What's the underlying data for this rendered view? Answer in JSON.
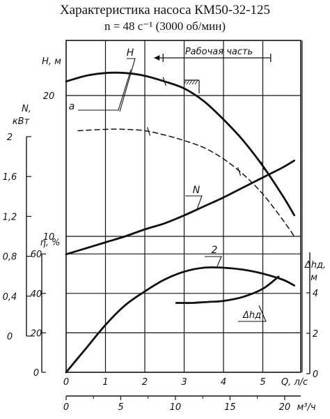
{
  "header": {
    "title": "Характеристика насоса КМ50-32-125",
    "subtitle": "n = 48 с⁻¹  (3000 об/мин)"
  },
  "chart_data": {
    "type": "line",
    "title": "Характеристика насоса КМ50-32-125",
    "subtitle": "n = 48 с⁻¹  (3000 об/мин)",
    "x_axes": {
      "ls": {
        "label": "Q, л/с",
        "ticks": [
          "0",
          "1",
          "2",
          "3",
          "4",
          "5"
        ],
        "range": [
          0,
          6
        ]
      },
      "m3h": {
        "label": "Q, м³/ч",
        "ticks": [
          "0",
          "5",
          "10",
          "15",
          "20"
        ],
        "range": [
          0,
          21.6
        ]
      }
    },
    "y_axes": {
      "H": {
        "label": "H, м",
        "ticks": [
          "10",
          "20"
        ],
        "range": [
          0,
          22
        ]
      },
      "N": {
        "label": "N, кВт",
        "ticks": [
          "0",
          "0,4",
          "0,8",
          "1,2",
          "1,6",
          "2"
        ],
        "range": [
          0,
          2
        ]
      },
      "eta": {
        "label": "η, %",
        "ticks": [
          "0",
          "20",
          "40",
          "60"
        ],
        "range": [
          0,
          60
        ]
      },
      "dh": {
        "label": "Δhд, м",
        "ticks": [
          "0",
          "2",
          "4"
        ],
        "range": [
          0,
          6
        ]
      }
    },
    "operating_range": {
      "label": "Рабочая часть",
      "Q_from": 2.5,
      "Q_to": 5.2
    },
    "series": [
      {
        "name": "H",
        "axis": "H",
        "style": "solid",
        "x": [
          0,
          0.5,
          1,
          1.5,
          2,
          2.5,
          3,
          3.5,
          4,
          4.5,
          5,
          5.5,
          5.8
        ],
        "y": [
          21.0,
          21.4,
          21.6,
          21.6,
          21.4,
          21.0,
          20.5,
          19.6,
          18.3,
          16.8,
          15.0,
          12.9,
          11.5
        ]
      },
      {
        "name": "a",
        "axis": "H",
        "style": "dashed",
        "x": [
          0.3,
          1,
          1.5,
          2,
          2.5,
          3,
          3.5,
          4,
          4.5,
          5,
          5.5,
          5.8
        ],
        "y": [
          17.5,
          17.6,
          17.6,
          17.5,
          17.2,
          16.8,
          16.3,
          15.5,
          14.4,
          13.0,
          11.2,
          10.0
        ]
      },
      {
        "name": "N",
        "axis": "N",
        "style": "solid",
        "x": [
          0,
          0.5,
          1,
          1.5,
          2,
          2.5,
          3,
          3.5,
          4,
          4.5,
          5,
          5.5,
          5.8
        ],
        "y": [
          0.82,
          0.88,
          0.94,
          1.0,
          1.07,
          1.13,
          1.21,
          1.3,
          1.39,
          1.49,
          1.59,
          1.69,
          1.76
        ]
      },
      {
        "name": "η",
        "axis": "eta",
        "style": "solid",
        "x": [
          0,
          0.5,
          1,
          1.5,
          2,
          2.5,
          3,
          3.5,
          4,
          4.5,
          5,
          5.5,
          5.8
        ],
        "y": [
          0,
          12,
          24,
          34,
          41,
          47,
          51,
          53,
          53,
          52,
          50,
          47,
          44
        ]
      },
      {
        "name": "Δhд",
        "axis": "dh",
        "style": "solid",
        "x": [
          2.8,
          3.2,
          3.6,
          4.0,
          4.5,
          5.0,
          5.4
        ],
        "y": [
          3.5,
          3.5,
          3.55,
          3.6,
          3.8,
          4.2,
          4.8
        ]
      }
    ],
    "curve_labels": [
      "H",
      "a",
      "N",
      "2",
      "Δhд"
    ],
    "grid": true
  }
}
